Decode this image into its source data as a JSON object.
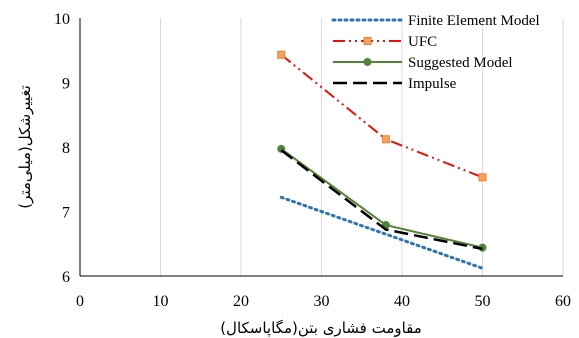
{
  "chart_data": {
    "type": "line",
    "title": "",
    "xlabel": "مقاومت فشاری بتن(مگاپاسکال)",
    "ylabel": "تغییرشکل(میلی‌متر)",
    "xlim": [
      0,
      60
    ],
    "ylim": [
      6,
      10
    ],
    "xticks": [
      "0",
      "10",
      "20",
      "30",
      "40",
      "50",
      "60"
    ],
    "yticks": [
      "6",
      "7",
      "8",
      "9",
      "10"
    ],
    "grid": "vertical",
    "legend_position": "top-right",
    "series": [
      {
        "name": "Finite Element Model",
        "x": [
          25,
          50
        ],
        "y": [
          7.22,
          6.12
        ],
        "color": "#2e75b6",
        "style": "dotted",
        "marker": "none"
      },
      {
        "name": "UFC",
        "x": [
          25,
          38,
          50
        ],
        "y": [
          9.43,
          8.12,
          7.53
        ],
        "color": "#e3120b",
        "style": "dash-dot-dot",
        "marker": "square"
      },
      {
        "name": "Suggested Model",
        "x": [
          25,
          38,
          50
        ],
        "y": [
          7.97,
          6.79,
          6.44
        ],
        "color": "#548235",
        "style": "solid",
        "marker": "circle"
      },
      {
        "name": "Impulse",
        "x": [
          25,
          38,
          50
        ],
        "y": [
          7.95,
          6.72,
          6.42
        ],
        "color": "#000000",
        "style": "dashed",
        "marker": "none"
      }
    ]
  }
}
